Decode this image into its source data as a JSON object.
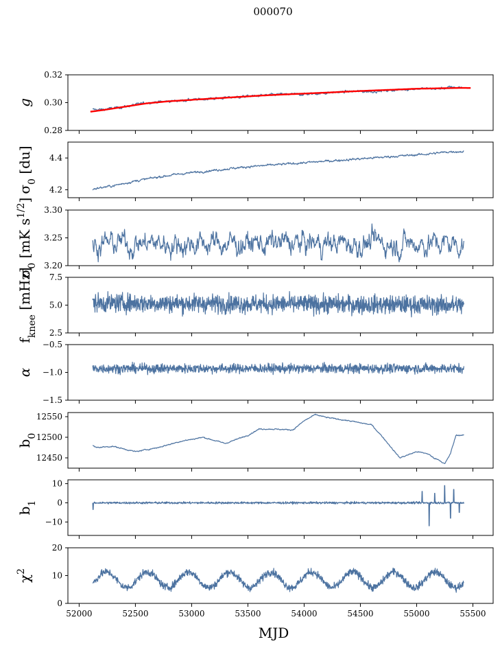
{
  "figure_title": "000070",
  "colors": {
    "series": "#4c72a0",
    "fit": "#ff0000",
    "axis": "#000000"
  },
  "chart_data": [
    {
      "type": "line",
      "id": "g",
      "ylabel": "g",
      "ylim": [
        0.28,
        0.32
      ],
      "yticks": [
        0.28,
        0.3,
        0.32
      ],
      "ytick_labels": [
        "0.28",
        "0.30",
        "0.32"
      ],
      "xlim": [
        51900,
        55680
      ],
      "series": [
        {
          "name": "g",
          "style": "noisy-trend",
          "x": [
            52120,
            52200,
            52400,
            52600,
            52800,
            53000,
            53200,
            53400,
            53600,
            53800,
            54000,
            54200,
            54400,
            54600,
            54800,
            55000,
            55200,
            55300,
            55400
          ],
          "values": [
            0.295,
            0.295,
            0.297,
            0.3,
            0.301,
            0.302,
            0.303,
            0.304,
            0.305,
            0.306,
            0.306,
            0.307,
            0.308,
            0.308,
            0.309,
            0.31,
            0.31,
            0.311,
            0.311
          ],
          "noise": 0.0008
        },
        {
          "name": "fit",
          "style": "smooth",
          "x": [
            52100,
            52200,
            52400,
            52600,
            52800,
            53000,
            53200,
            53400,
            53600,
            53800,
            54000,
            54200,
            54400,
            54600,
            54800,
            55000,
            55200,
            55400,
            55480
          ],
          "values": [
            0.2935,
            0.2945,
            0.297,
            0.2995,
            0.301,
            0.302,
            0.303,
            0.304,
            0.305,
            0.3058,
            0.3065,
            0.3072,
            0.308,
            0.3087,
            0.3093,
            0.31,
            0.3103,
            0.3106,
            0.3105
          ]
        }
      ]
    },
    {
      "type": "line",
      "id": "sigma0",
      "ylabel": "σ0 [du]",
      "ylim": [
        4.15,
        4.5
      ],
      "yticks": [
        4.2,
        4.4
      ],
      "ytick_labels": [
        "4.2",
        "4.4"
      ],
      "xlim": [
        51900,
        55680
      ],
      "series": [
        {
          "name": "sigma0",
          "style": "noisy-trend",
          "x": [
            52120,
            52300,
            52500,
            52700,
            52900,
            53100,
            53300,
            53500,
            53700,
            53900,
            54100,
            54300,
            54500,
            54700,
            54900,
            55100,
            55300,
            55420
          ],
          "values": [
            4.205,
            4.225,
            4.255,
            4.28,
            4.3,
            4.315,
            4.33,
            4.345,
            4.355,
            4.365,
            4.375,
            4.385,
            4.395,
            4.405,
            4.415,
            4.425,
            4.44,
            4.44
          ],
          "noise": 0.006
        }
      ]
    },
    {
      "type": "line",
      "id": "sigma",
      "ylabel": "σ0 [mK s^1/2]",
      "ylim": [
        3.2,
        3.3
      ],
      "yticks": [
        3.2,
        3.25,
        3.3
      ],
      "ytick_labels": [
        "3.20",
        "3.25",
        "3.30"
      ],
      "xlim": [
        51900,
        55680
      ],
      "series": [
        {
          "name": "sigma",
          "style": "noise",
          "x": [
            52120,
            55420
          ],
          "values": [
            3.24,
            3.24
          ],
          "noise": 0.018
        }
      ]
    },
    {
      "type": "line",
      "id": "fknee",
      "ylabel": "f_knee [mHz]",
      "ylim": [
        2.5,
        7.5
      ],
      "yticks": [
        2.5,
        5.0,
        7.5
      ],
      "ytick_labels": [
        "2.5",
        "5.0",
        "7.5"
      ],
      "xlim": [
        51900,
        55680
      ],
      "series": [
        {
          "name": "fknee",
          "style": "noise",
          "x": [
            52120,
            55420
          ],
          "values": [
            5.2,
            5.0
          ],
          "noise": 0.75
        }
      ]
    },
    {
      "type": "line",
      "id": "alpha",
      "ylabel": "α",
      "ylim": [
        -1.5,
        -0.5
      ],
      "yticks": [
        -1.5,
        -1.0,
        -0.5
      ],
      "ytick_labels": [
        "−1.5",
        "−1.0",
        "−0.5"
      ],
      "xlim": [
        51900,
        55680
      ],
      "series": [
        {
          "name": "alpha",
          "style": "noise",
          "x": [
            52120,
            55420
          ],
          "values": [
            -0.93,
            -0.93
          ],
          "noise": 0.075
        }
      ]
    },
    {
      "type": "line",
      "id": "b0",
      "ylabel": "b0",
      "ylim": [
        12425,
        12560
      ],
      "yticks": [
        12450,
        12500,
        12550
      ],
      "ytick_labels": [
        "12450",
        "12500",
        "12550"
      ],
      "xlim": [
        51900,
        55680
      ],
      "series": [
        {
          "name": "b0",
          "style": "smooth-jitter",
          "x": [
            52120,
            52150,
            52300,
            52500,
            52700,
            52900,
            53100,
            53300,
            53500,
            53600,
            53700,
            53900,
            54000,
            54100,
            54200,
            54400,
            54500,
            54600,
            54700,
            54850,
            55000,
            55100,
            55150,
            55200,
            55250,
            55300,
            55350,
            55420
          ],
          "values": [
            12480,
            12475,
            12478,
            12465,
            12475,
            12490,
            12500,
            12485,
            12505,
            12520,
            12520,
            12518,
            12540,
            12555,
            12548,
            12540,
            12535,
            12530,
            12500,
            12450,
            12465,
            12460,
            12450,
            12445,
            12435,
            12460,
            12505,
            12505
          ],
          "noise": 1.2
        }
      ]
    },
    {
      "type": "line",
      "id": "b1",
      "ylabel": "b1",
      "ylim": [
        -17,
        12
      ],
      "yticks": [
        -10,
        0,
        10
      ],
      "ytick_labels": [
        "−10",
        "0",
        "10"
      ],
      "xlim": [
        51900,
        55680
      ],
      "series": [
        {
          "name": "b1",
          "style": "noise-spikes",
          "x": [
            52120,
            55420
          ],
          "values": [
            0,
            0
          ],
          "noise": 0.5,
          "spikes": [
            [
              52125,
              -3.5
            ],
            [
              55050,
              6
            ],
            [
              55110,
              -12
            ],
            [
              55160,
              5
            ],
            [
              55250,
              9
            ],
            [
              55300,
              -8
            ],
            [
              55330,
              7
            ],
            [
              55380,
              -5
            ]
          ]
        }
      ]
    },
    {
      "type": "line",
      "id": "chi2",
      "ylabel": "χ2",
      "ylim": [
        0,
        20
      ],
      "yticks": [
        0,
        10,
        20
      ],
      "ytick_labels": [
        "0",
        "10",
        "20"
      ],
      "xlim": [
        51900,
        55680
      ],
      "xticks": [
        52000,
        52500,
        53000,
        53500,
        54000,
        54500,
        55000,
        55500
      ],
      "xtick_labels": [
        "52000",
        "52500",
        "53000",
        "53500",
        "54000",
        "54500",
        "55000",
        "55500"
      ],
      "xlabel": "MJD",
      "series": [
        {
          "name": "chi2",
          "style": "seasonal",
          "x": [
            52120,
            55420
          ],
          "values": [
            8.5,
            8.5
          ],
          "amplitude": 2.8,
          "period": 365.25,
          "noise": 1.2
        }
      ]
    }
  ]
}
